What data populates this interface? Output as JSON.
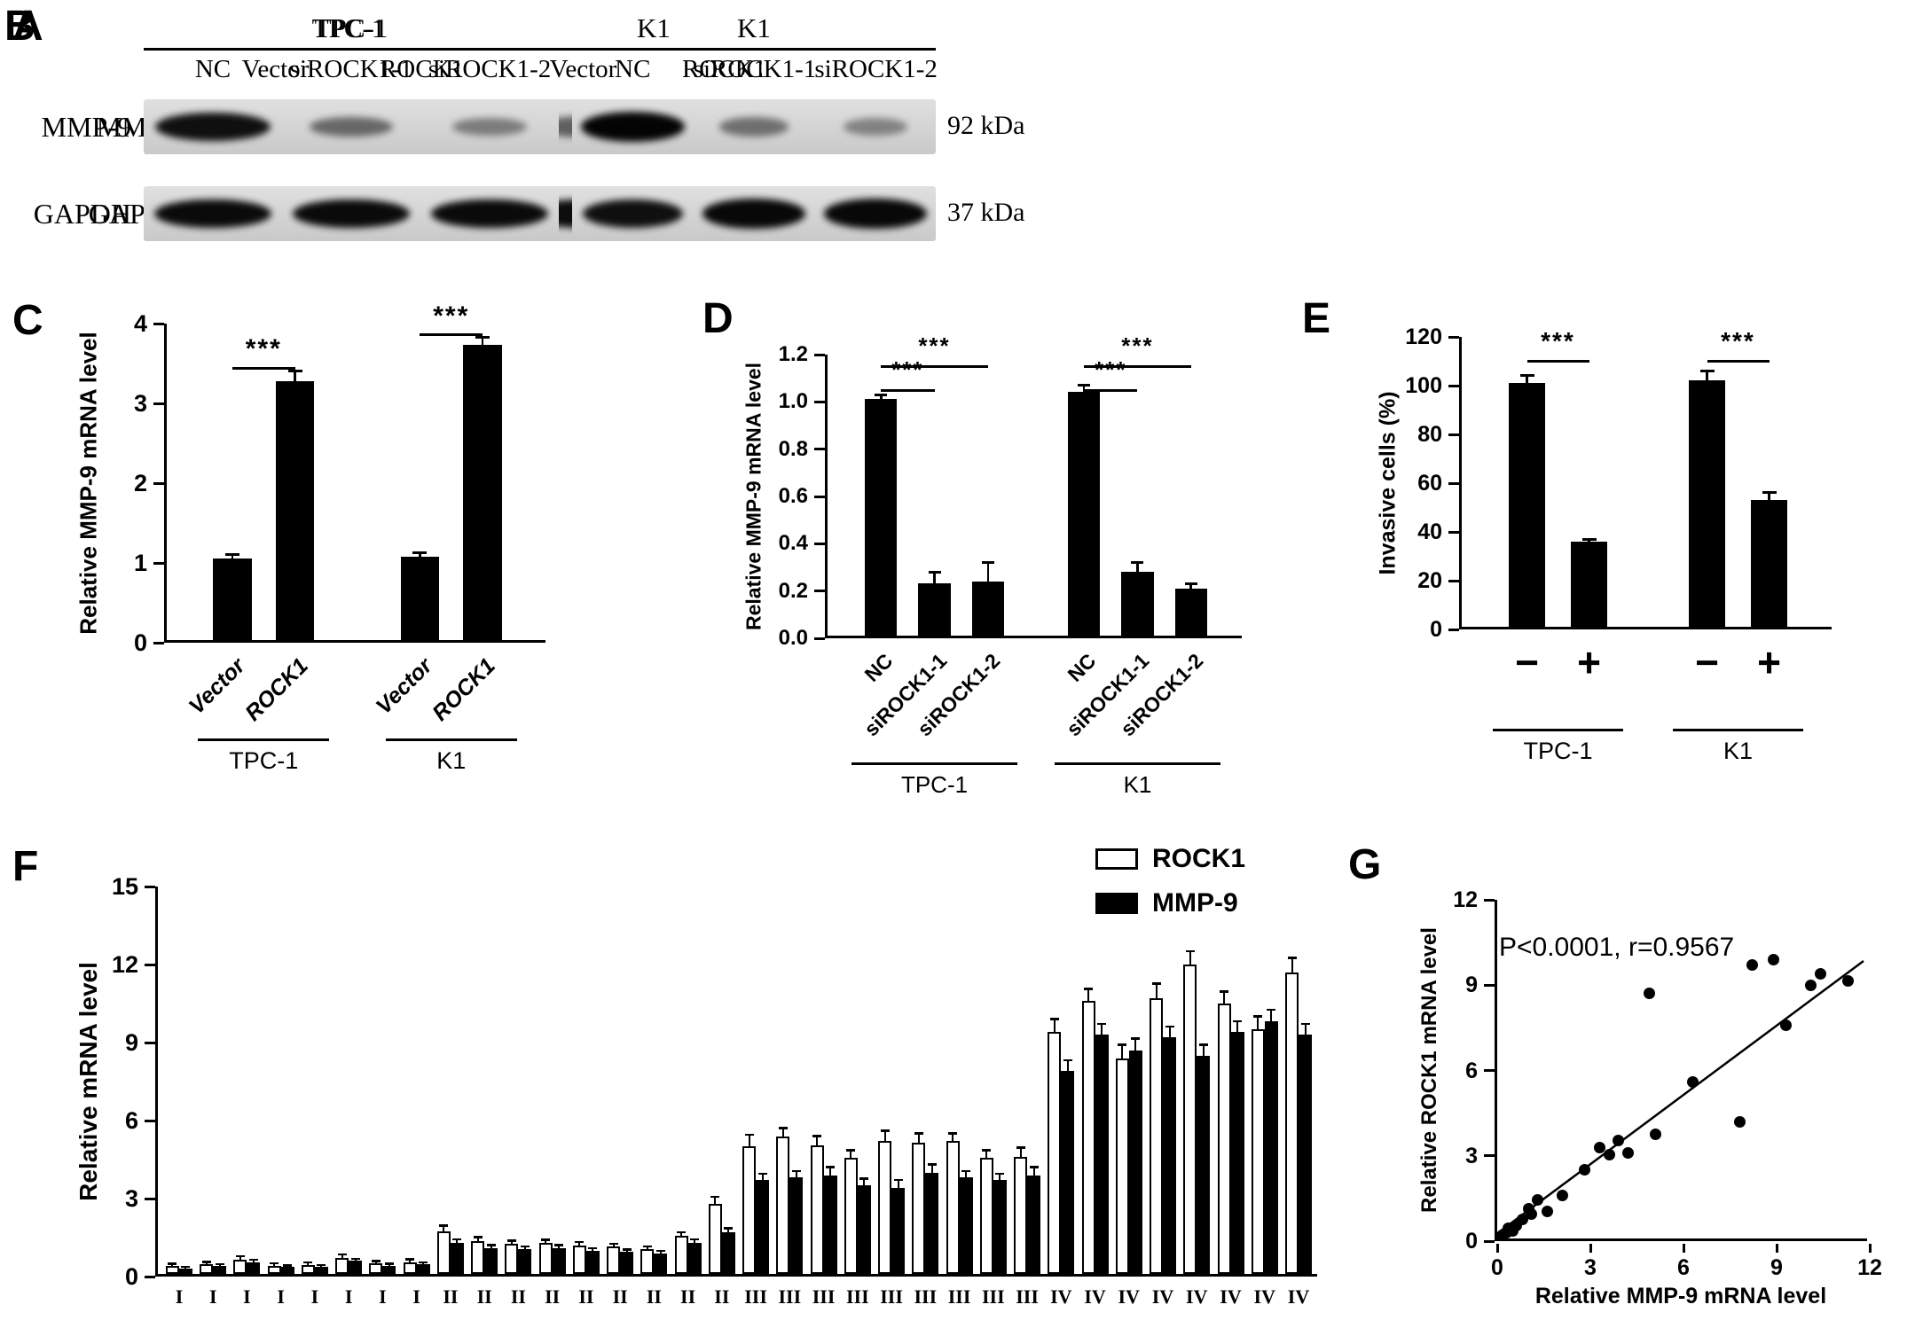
{
  "panels": {
    "A": {
      "letter": "A",
      "type": "western-blot",
      "groups": [
        {
          "name": "TPC-1",
          "lanes": [
            "Vector",
            "ROCK1"
          ]
        },
        {
          "name": "K1",
          "lanes": [
            "Vector",
            "ROCK1"
          ]
        }
      ],
      "rows": [
        {
          "label": "MMP-9",
          "kda": "92 kDa",
          "intensities": [
            [
              0.85,
              1.0
            ],
            [
              0.4,
              0.65
            ]
          ]
        },
        {
          "label": "GAPDH",
          "kda": "37 kDa",
          "intensities": [
            [
              0.95,
              0.95
            ],
            [
              0.92,
              0.92
            ]
          ]
        }
      ]
    },
    "B": {
      "letter": "B",
      "type": "western-blot",
      "groups": [
        {
          "name": "TPC-1",
          "lanes": [
            "NC",
            "siROCK1-1",
            "siROCK1-2"
          ]
        },
        {
          "name": "K1",
          "lanes": [
            "NC",
            "siROCK1-1",
            "siROCK1-2"
          ]
        }
      ],
      "rows": [
        {
          "label": "MMP-9",
          "kda": "92 kDa",
          "intensities": [
            [
              0.9,
              0.35,
              0.22
            ],
            [
              0.97,
              0.3,
              0.18
            ]
          ]
        },
        {
          "label": "GAPDH",
          "kda": "37 kDa",
          "intensities": [
            [
              0.93,
              0.93,
              0.93
            ],
            [
              0.9,
              0.95,
              0.95
            ]
          ]
        }
      ]
    }
  },
  "chart_data": [
    {
      "panel": "C",
      "type": "bar",
      "ylabel": "Relative MMP-9 mRNA level",
      "ylim": [
        0,
        4
      ],
      "yticks": [
        0,
        1,
        2,
        3,
        4
      ],
      "categories": [
        "Vector",
        "ROCK1",
        "Vector",
        "ROCK1"
      ],
      "values": [
        1.02,
        3.25,
        1.05,
        3.7
      ],
      "errors": [
        0.05,
        0.12,
        0.05,
        0.1
      ],
      "groups": [
        {
          "label": "TPC-1",
          "bars": [
            0,
            1
          ]
        },
        {
          "label": "K1",
          "bars": [
            2,
            3
          ]
        }
      ],
      "significance": [
        {
          "a": 0,
          "b": 1,
          "label": "***",
          "height_frac": 0.86
        },
        {
          "a": 2,
          "b": 3,
          "label": "***",
          "height_frac": 0.965
        }
      ]
    },
    {
      "panel": "D",
      "type": "bar",
      "ylabel": "Relative MMP-9 mRNA level",
      "ylim": [
        0,
        1.2
      ],
      "yticks": [
        0,
        0.2,
        0.4,
        0.6,
        0.8,
        1.0,
        1.2
      ],
      "ytick_labels": [
        "0.0",
        "0.2",
        "0.4",
        "0.6",
        "0.8",
        "1.0",
        "1.2"
      ],
      "categories": [
        "NC",
        "siROCK1-1",
        "siROCK1-2",
        "NC",
        "siROCK1-1",
        "siROCK1-2"
      ],
      "values": [
        1.0,
        0.22,
        0.23,
        1.03,
        0.27,
        0.2
      ],
      "errors": [
        0.02,
        0.05,
        0.08,
        0.03,
        0.04,
        0.02
      ],
      "groups": [
        {
          "label": "TPC-1",
          "bars": [
            0,
            1,
            2
          ]
        },
        {
          "label": "K1",
          "bars": [
            3,
            4,
            5
          ]
        }
      ],
      "significance": [
        {
          "a": 0,
          "b": 1,
          "label": "***",
          "height_frac": 0.875
        },
        {
          "a": 0,
          "b": 2,
          "label": "***",
          "height_frac": 0.958
        },
        {
          "a": 3,
          "b": 4,
          "label": "***",
          "height_frac": 0.875
        },
        {
          "a": 3,
          "b": 5,
          "label": "***",
          "height_frac": 0.958
        }
      ]
    },
    {
      "panel": "E",
      "type": "bar",
      "ylabel": "Invasive cells (%)",
      "ylim": [
        0,
        120
      ],
      "yticks": [
        0,
        20,
        40,
        60,
        80,
        100,
        120
      ],
      "categories": [
        "−",
        "+",
        "−",
        "+"
      ],
      "values": [
        100,
        35,
        101,
        52
      ],
      "errors": [
        3,
        1,
        4,
        3
      ],
      "groups": [
        {
          "label": "TPC-1",
          "bars": [
            0,
            1
          ]
        },
        {
          "label": "K1",
          "bars": [
            2,
            3
          ]
        }
      ],
      "significance": [
        {
          "a": 0,
          "b": 1,
          "label": "***",
          "height_frac": 0.917
        },
        {
          "a": 2,
          "b": 3,
          "label": "***",
          "height_frac": 0.917
        }
      ]
    },
    {
      "panel": "F",
      "type": "paired-bar",
      "ylabel": "Relative mRNA level",
      "ylim": [
        0,
        15
      ],
      "yticks": [
        0,
        3,
        6,
        9,
        12,
        15
      ],
      "legend": [
        {
          "label": "ROCK1",
          "fill": "white"
        },
        {
          "label": "MMP-9",
          "fill": "black"
        }
      ],
      "stages": [
        "I",
        "I",
        "I",
        "I",
        "I",
        "I",
        "I",
        "I",
        "II",
        "II",
        "II",
        "II",
        "II",
        "II",
        "II",
        "II",
        "II",
        "III",
        "III",
        "III",
        "III",
        "III",
        "III",
        "III",
        "III",
        "III",
        "IV",
        "IV",
        "IV",
        "IV",
        "IV",
        "IV",
        "IV",
        "IV"
      ],
      "rock1": [
        0.3,
        0.38,
        0.55,
        0.32,
        0.35,
        0.62,
        0.4,
        0.45,
        1.65,
        1.25,
        1.15,
        1.18,
        1.1,
        1.05,
        0.95,
        1.45,
        2.7,
        4.9,
        5.3,
        4.95,
        4.45,
        5.1,
        5.05,
        5.1,
        4.45,
        4.5,
        9.3,
        10.5,
        8.3,
        10.6,
        11.9,
        10.4,
        9.4,
        11.6
      ],
      "mmp9": [
        0.22,
        0.3,
        0.45,
        0.26,
        0.28,
        0.5,
        0.32,
        0.36,
        1.2,
        1.0,
        0.95,
        1.0,
        0.9,
        0.85,
        0.8,
        1.2,
        1.6,
        3.6,
        3.7,
        3.8,
        3.4,
        3.3,
        3.9,
        3.7,
        3.6,
        3.8,
        7.8,
        9.2,
        8.6,
        9.1,
        8.4,
        9.3,
        9.7,
        9.2
      ],
      "rock1_err": [
        0.08,
        0.08,
        0.12,
        0.08,
        0.08,
        0.12,
        0.08,
        0.1,
        0.2,
        0.15,
        0.12,
        0.12,
        0.12,
        0.1,
        0.1,
        0.15,
        0.25,
        0.45,
        0.3,
        0.35,
        0.3,
        0.4,
        0.35,
        0.3,
        0.3,
        0.35,
        0.5,
        0.45,
        0.5,
        0.55,
        0.5,
        0.45,
        0.5,
        0.55
      ],
      "mmp9_err": [
        0.05,
        0.06,
        0.08,
        0.05,
        0.06,
        0.08,
        0.06,
        0.07,
        0.12,
        0.1,
        0.1,
        0.1,
        0.08,
        0.08,
        0.08,
        0.12,
        0.15,
        0.25,
        0.25,
        0.3,
        0.25,
        0.3,
        0.3,
        0.25,
        0.25,
        0.3,
        0.4,
        0.4,
        0.45,
        0.4,
        0.4,
        0.4,
        0.45,
        0.4
      ]
    },
    {
      "panel": "G",
      "type": "scatter",
      "xlabel": "Relative MMP-9 mRNA level",
      "ylabel": "Relative ROCK1 mRNA level",
      "xlim": [
        0,
        12
      ],
      "ylim": [
        0,
        12
      ],
      "xticks": [
        0,
        3,
        6,
        9,
        12
      ],
      "yticks": [
        0,
        3,
        6,
        9,
        12
      ],
      "annotation": "P<0.0001, r=0.9567",
      "points": [
        [
          0.15,
          0.2
        ],
        [
          0.3,
          0.3
        ],
        [
          0.35,
          0.45
        ],
        [
          0.5,
          0.35
        ],
        [
          0.6,
          0.55
        ],
        [
          0.8,
          0.75
        ],
        [
          1.0,
          1.15
        ],
        [
          1.1,
          0.95
        ],
        [
          1.3,
          1.45
        ],
        [
          1.6,
          1.05
        ],
        [
          2.1,
          1.6
        ],
        [
          2.8,
          2.5
        ],
        [
          3.3,
          3.3
        ],
        [
          3.6,
          3.05
        ],
        [
          3.9,
          3.55
        ],
        [
          4.2,
          3.1
        ],
        [
          4.9,
          8.7
        ],
        [
          5.1,
          3.75
        ],
        [
          6.3,
          5.6
        ],
        [
          7.8,
          4.2
        ],
        [
          8.2,
          9.7
        ],
        [
          8.9,
          9.9
        ],
        [
          9.3,
          7.6
        ],
        [
          10.1,
          9.0
        ],
        [
          10.4,
          9.4
        ],
        [
          11.3,
          9.15
        ]
      ],
      "trend_line": {
        "x": [
          0.1,
          11.8
        ],
        "y": [
          0.35,
          9.85
        ]
      }
    }
  ]
}
